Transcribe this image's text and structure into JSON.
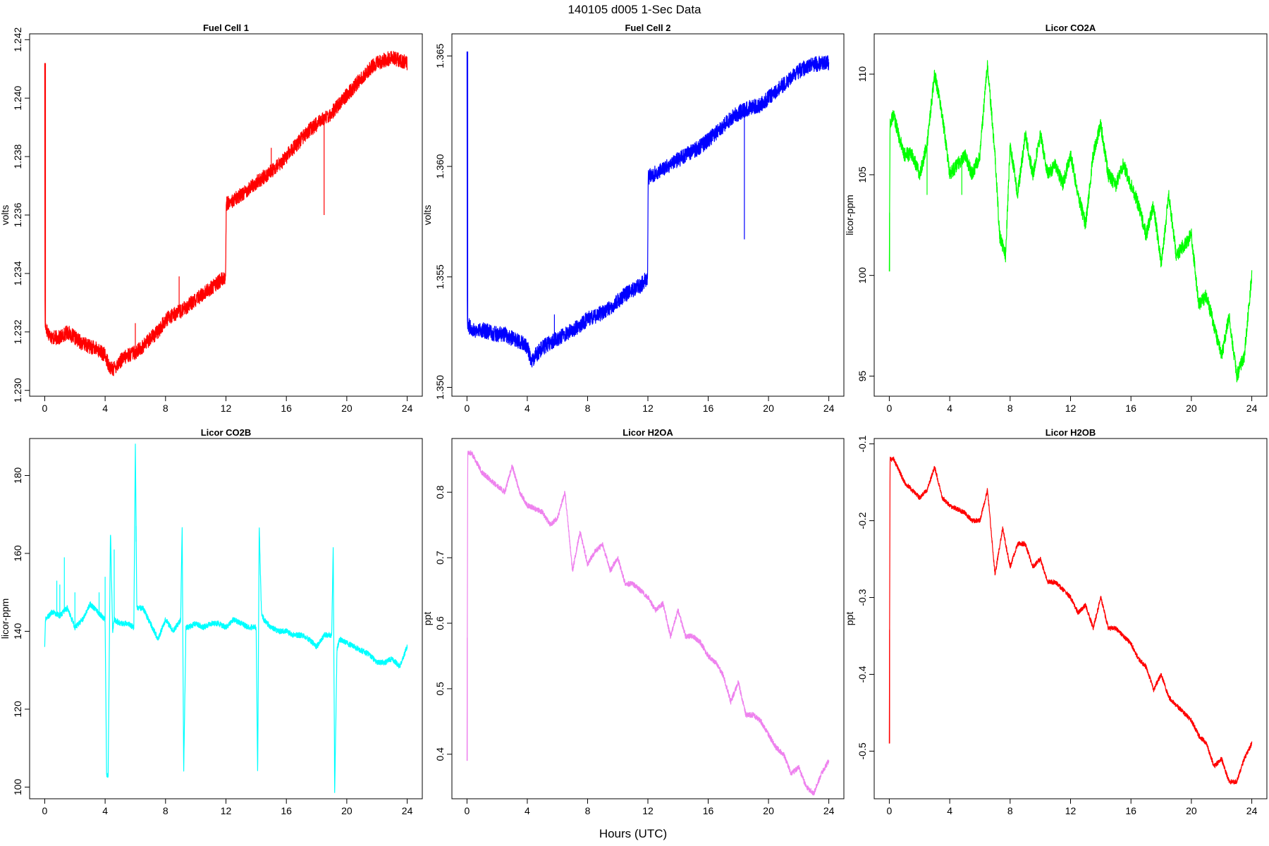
{
  "figure": {
    "title": "140105   d005   1-Sec Data",
    "xlabel": "Hours (UTC)"
  },
  "chart_data": [
    {
      "type": "line",
      "title": "Fuel Cell 1",
      "xlabel": "",
      "ylabel": "volts",
      "color": "#ff0000",
      "xlim": [
        -1,
        25
      ],
      "ylim": [
        1.2298,
        1.2422
      ],
      "xticks": [
        0,
        4,
        8,
        12,
        16,
        20,
        24
      ],
      "yticks": [
        1.23,
        1.232,
        1.234,
        1.236,
        1.238,
        1.24,
        1.242
      ],
      "ytick_labels": [
        "1.230",
        "1.232",
        "1.234",
        "1.236",
        "1.238",
        "1.240",
        "1.242"
      ],
      "noise": 0.00025,
      "x": [
        0,
        0.02,
        0.05,
        0.2,
        0.5,
        1,
        1.5,
        2,
        2.5,
        3,
        3.5,
        4,
        4.3,
        4.5,
        5,
        5.5,
        6,
        6.5,
        7,
        7.5,
        8,
        8.5,
        9,
        9.5,
        10,
        10.5,
        11,
        11.5,
        11.98,
        12.02,
        12.5,
        13,
        13.5,
        14,
        14.5,
        15,
        15.5,
        16,
        16.5,
        17,
        17.5,
        18,
        18.5,
        19,
        19.5,
        20,
        20.5,
        21,
        21.5,
        22,
        22.5,
        23,
        23.5,
        24
      ],
      "y": [
        1.2412,
        1.2324,
        1.2322,
        1.232,
        1.2318,
        1.2318,
        1.232,
        1.2318,
        1.2316,
        1.2315,
        1.2314,
        1.2312,
        1.2308,
        1.2307,
        1.231,
        1.2312,
        1.2313,
        1.2315,
        1.2318,
        1.232,
        1.2324,
        1.2326,
        1.2327,
        1.2329,
        1.2331,
        1.2333,
        1.2335,
        1.2337,
        1.2339,
        1.2364,
        1.2365,
        1.2367,
        1.2369,
        1.2371,
        1.2373,
        1.2375,
        1.2377,
        1.238,
        1.2383,
        1.2386,
        1.2389,
        1.2391,
        1.2393,
        1.2395,
        1.2398,
        1.2401,
        1.2404,
        1.2407,
        1.241,
        1.2412,
        1.2413,
        1.2414,
        1.2413,
        1.2412
      ],
      "spikes": [
        [
          0.05,
          1.2412
        ],
        [
          8.9,
          1.2339
        ],
        [
          6,
          1.2323
        ],
        [
          15,
          1.2383
        ],
        [
          18.5,
          1.236
        ]
      ]
    },
    {
      "type": "line",
      "title": "Fuel Cell 2",
      "xlabel": "",
      "ylabel": "volts",
      "color": "#0000ff",
      "xlim": [
        -1,
        25
      ],
      "ylim": [
        1.3496,
        1.366
      ],
      "xticks": [
        0,
        4,
        8,
        12,
        16,
        20,
        24
      ],
      "yticks": [
        1.35,
        1.355,
        1.36,
        1.365
      ],
      "ytick_labels": [
        "1.350",
        "1.355",
        "1.360",
        "1.365"
      ],
      "noise": 0.00035,
      "x": [
        0,
        0.02,
        0.05,
        0.2,
        0.5,
        1,
        1.5,
        2,
        2.5,
        3,
        3.5,
        4,
        4.3,
        4.5,
        5,
        5.5,
        6,
        6.5,
        7,
        7.5,
        8,
        8.5,
        9,
        9.5,
        10,
        10.5,
        11,
        11.5,
        11.98,
        12.02,
        12.5,
        13,
        13.5,
        14,
        14.5,
        15,
        15.5,
        16,
        16.5,
        17,
        17.5,
        18,
        18.5,
        19,
        19.5,
        20,
        20.5,
        21,
        21.5,
        22,
        22.5,
        23,
        23.5,
        24
      ],
      "y": [
        1.3652,
        1.3531,
        1.3529,
        1.3527,
        1.3526,
        1.3526,
        1.3525,
        1.3524,
        1.3524,
        1.3522,
        1.3521,
        1.3518,
        1.3512,
        1.3514,
        1.3518,
        1.352,
        1.3522,
        1.3524,
        1.3526,
        1.3528,
        1.3531,
        1.3532,
        1.3534,
        1.3536,
        1.3539,
        1.3542,
        1.3544,
        1.3546,
        1.355,
        1.3595,
        1.3597,
        1.3599,
        1.3601,
        1.3603,
        1.3605,
        1.3607,
        1.3609,
        1.3612,
        1.3615,
        1.3618,
        1.3622,
        1.3624,
        1.3626,
        1.3627,
        1.3628,
        1.3631,
        1.3634,
        1.3637,
        1.364,
        1.3643,
        1.3645,
        1.3646,
        1.3647,
        1.3647
      ],
      "spikes": [
        [
          0.05,
          1.3652
        ],
        [
          18.4,
          1.3567
        ],
        [
          5.8,
          1.3533
        ]
      ]
    },
    {
      "type": "line",
      "title": "Licor CO2A",
      "xlabel": "",
      "ylabel": "licor-ppm",
      "color": "#00ff00",
      "xlim": [
        -1,
        25
      ],
      "ylim": [
        94.0,
        112.0
      ],
      "xticks": [
        0,
        4,
        8,
        12,
        16,
        20,
        24
      ],
      "yticks": [
        95,
        100,
        105,
        110
      ],
      "ytick_labels": [
        "95",
        "100",
        "105",
        "110"
      ],
      "noise": 0.35,
      "x": [
        0,
        0.05,
        0.3,
        0.6,
        1,
        1.5,
        2,
        2.5,
        3,
        3.5,
        4,
        4.5,
        5,
        5.5,
        6,
        6.5,
        7,
        7.3,
        7.7,
        8,
        8.5,
        9,
        9.5,
        10,
        10.5,
        11,
        11.5,
        12,
        12.5,
        13,
        13.5,
        14,
        14.5,
        15,
        15.5,
        16,
        16.5,
        17,
        17.5,
        18,
        18.5,
        19,
        19.5,
        20,
        20.5,
        21,
        21.5,
        22,
        22.5,
        23,
        23.5,
        24
      ],
      "y": [
        100.2,
        107.5,
        108.0,
        107.0,
        106.0,
        106.0,
        105.0,
        106.5,
        110.0,
        108.0,
        105.0,
        105.5,
        106.0,
        105.0,
        106.0,
        110.5,
        106.0,
        102.0,
        101.0,
        106.5,
        104.0,
        107.0,
        105.0,
        107.0,
        105.0,
        105.5,
        104.5,
        106.0,
        104.0,
        102.5,
        106.0,
        107.5,
        105.0,
        104.5,
        105.5,
        104.5,
        103.5,
        102.0,
        103.5,
        100.5,
        104.0,
        101.0,
        101.5,
        102.0,
        98.5,
        99.0,
        97.5,
        96.0,
        98.0,
        95.0,
        96.0,
        100.0
      ],
      "spikes": [
        [
          0.02,
          100.2
        ],
        [
          2.5,
          104.0
        ],
        [
          4.8,
          104.0
        ]
      ]
    },
    {
      "type": "line",
      "title": "Licor CO2B",
      "xlabel": "",
      "ylabel": "licor-ppm",
      "color": "#00ffff",
      "xlim": [
        -1,
        25
      ],
      "ylim": [
        97.0,
        189.5
      ],
      "xticks": [
        0,
        4,
        8,
        12,
        16,
        20,
        24
      ],
      "yticks": [
        100,
        120,
        140,
        160,
        180
      ],
      "ytick_labels": [
        "100",
        "120",
        "140",
        "160",
        "180"
      ],
      "noise": 0.7,
      "x": [
        0,
        0.05,
        0.5,
        1,
        1.5,
        2,
        2.5,
        3,
        3.5,
        4,
        4.1,
        4.2,
        4.35,
        4.5,
        4.6,
        5,
        5.5,
        5.9,
        6,
        6.1,
        6.5,
        7,
        7.5,
        8,
        8.5,
        9,
        9.1,
        9.2,
        9.35,
        9.5,
        10,
        10.5,
        11,
        11.5,
        12,
        12.5,
        13,
        13.5,
        14,
        14.1,
        14.2,
        14.35,
        14.5,
        15,
        15.5,
        16,
        16.5,
        17,
        17.5,
        18,
        18.5,
        19,
        19.1,
        19.2,
        19.35,
        19.5,
        20,
        20.5,
        21,
        21.5,
        22,
        22.5,
        23,
        23.5,
        24
      ],
      "y": [
        136.0,
        143.0,
        145.0,
        144.0,
        146.0,
        141.0,
        143.0,
        147.0,
        145.0,
        143.0,
        103.0,
        103.0,
        166.0,
        140.0,
        143.0,
        142.0,
        142.0,
        141.0,
        188.0,
        146.0,
        146.0,
        142.0,
        138.0,
        143.0,
        140.0,
        143.0,
        167.0,
        104.0,
        141.0,
        141.0,
        142.0,
        141.0,
        142.0,
        142.0,
        141.0,
        143.0,
        142.0,
        141.0,
        141.0,
        103.0,
        167.0,
        145.0,
        143.0,
        141.0,
        140.0,
        140.0,
        139.0,
        139.0,
        138.0,
        136.0,
        139.0,
        139.0,
        162.0,
        98.0,
        135.0,
        138.0,
        137.0,
        136.0,
        135.0,
        134.0,
        132.0,
        132.0,
        133.0,
        131.0,
        136.0
      ],
      "spikes": [
        [
          1.0,
          152.0
        ],
        [
          1.3,
          159.0
        ],
        [
          0.8,
          153.0
        ],
        [
          2.0,
          150.0
        ],
        [
          4.6,
          161.0
        ],
        [
          6.05,
          163.0
        ],
        [
          3.6,
          150.0
        ],
        [
          4.0,
          154.0
        ]
      ]
    },
    {
      "type": "line",
      "title": "Licor H2OA",
      "xlabel": "",
      "ylabel": "ppt",
      "color": "#ee82ee",
      "xlim": [
        -1,
        25
      ],
      "ylim": [
        0.332,
        0.882
      ],
      "xticks": [
        0,
        4,
        8,
        12,
        16,
        20,
        24
      ],
      "yticks": [
        0.4,
        0.5,
        0.6,
        0.7,
        0.8
      ],
      "ytick_labels": [
        "0.4",
        "0.5",
        "0.6",
        "0.7",
        "0.8"
      ],
      "noise": 0.004,
      "x": [
        0,
        0.05,
        0.3,
        1,
        1.5,
        2,
        2.5,
        3,
        3.5,
        4,
        5,
        5.5,
        6,
        6.5,
        7,
        7.5,
        8,
        8.5,
        9,
        9.5,
        10,
        10.5,
        11,
        11.5,
        12,
        12.5,
        13,
        13.5,
        14,
        14.5,
        15,
        15.5,
        16,
        16.5,
        17,
        17.5,
        18,
        18.5,
        19,
        19.5,
        20,
        20.5,
        21,
        21.5,
        22,
        22.5,
        23,
        23.5,
        24
      ],
      "y": [
        0.39,
        0.86,
        0.86,
        0.83,
        0.82,
        0.81,
        0.8,
        0.84,
        0.8,
        0.78,
        0.77,
        0.75,
        0.76,
        0.8,
        0.68,
        0.74,
        0.69,
        0.71,
        0.72,
        0.68,
        0.7,
        0.66,
        0.66,
        0.65,
        0.64,
        0.62,
        0.63,
        0.58,
        0.62,
        0.58,
        0.58,
        0.57,
        0.55,
        0.54,
        0.52,
        0.48,
        0.51,
        0.46,
        0.46,
        0.45,
        0.43,
        0.41,
        0.4,
        0.37,
        0.38,
        0.35,
        0.34,
        0.37,
        0.39
      ],
      "spikes": [
        [
          0.02,
          0.39
        ]
      ]
    },
    {
      "type": "line",
      "title": "Licor H2OB",
      "xlabel": "",
      "ylabel": "ppt",
      "color": "#ff0000",
      "xlim": [
        -1,
        25
      ],
      "ylim": [
        -0.562,
        -0.093
      ],
      "xticks": [
        0,
        4,
        8,
        12,
        16,
        20,
        24
      ],
      "yticks": [
        -0.5,
        -0.4,
        -0.3,
        -0.2,
        -0.1
      ],
      "ytick_labels": [
        "-0.5",
        "-0.4",
        "-0.3",
        "-0.2",
        "-0.1"
      ],
      "noise": 0.003,
      "x": [
        0,
        0.05,
        0.3,
        1,
        1.5,
        2,
        2.5,
        3,
        3.5,
        4,
        5,
        5.5,
        6,
        6.5,
        7,
        7.5,
        8,
        8.5,
        9,
        9.5,
        10,
        10.5,
        11,
        11.5,
        12,
        12.5,
        13,
        13.5,
        14,
        14.5,
        15,
        15.5,
        16,
        16.5,
        17,
        17.5,
        18,
        18.5,
        19,
        19.5,
        20,
        20.5,
        21,
        21.5,
        22,
        22.5,
        23,
        23.5,
        24
      ],
      "y": [
        -0.49,
        -0.12,
        -0.12,
        -0.15,
        -0.16,
        -0.17,
        -0.16,
        -0.13,
        -0.17,
        -0.18,
        -0.19,
        -0.2,
        -0.2,
        -0.16,
        -0.27,
        -0.21,
        -0.26,
        -0.23,
        -0.23,
        -0.26,
        -0.25,
        -0.28,
        -0.28,
        -0.29,
        -0.3,
        -0.32,
        -0.31,
        -0.34,
        -0.3,
        -0.34,
        -0.34,
        -0.35,
        -0.36,
        -0.38,
        -0.39,
        -0.42,
        -0.4,
        -0.43,
        -0.44,
        -0.45,
        -0.46,
        -0.48,
        -0.49,
        -0.52,
        -0.51,
        -0.54,
        -0.54,
        -0.51,
        -0.49
      ],
      "spikes": [
        [
          0.02,
          -0.49
        ]
      ]
    }
  ]
}
